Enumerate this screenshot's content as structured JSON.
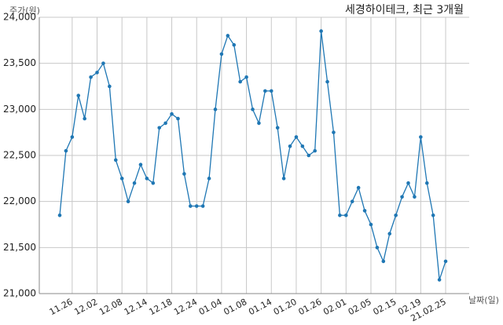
{
  "chart_data": {
    "type": "line",
    "title": "세경하이테크, 최근 3개월",
    "y_label": "주가(원)",
    "x_label": "날짜(일)",
    "categories": [
      null,
      null,
      "11.26",
      null,
      null,
      null,
      "12.02",
      null,
      null,
      null,
      "12.08",
      null,
      null,
      null,
      "12.14",
      null,
      null,
      null,
      "12.18",
      null,
      null,
      null,
      "12.24",
      null,
      null,
      null,
      "01.04",
      null,
      null,
      null,
      "01.08",
      null,
      null,
      null,
      "01.14",
      null,
      null,
      null,
      "01.20",
      null,
      null,
      null,
      "01.26",
      null,
      null,
      null,
      "02.01",
      null,
      null,
      null,
      "02.05",
      null,
      null,
      null,
      "02.15",
      null,
      null,
      null,
      "02.19",
      null,
      null,
      null,
      "21.02.25"
    ],
    "values": [
      21850,
      22550,
      22700,
      23150,
      22900,
      23350,
      23400,
      23500,
      23250,
      22450,
      22250,
      22000,
      22200,
      22400,
      22250,
      22200,
      22800,
      22850,
      22950,
      22900,
      22300,
      21950,
      21950,
      21950,
      22250,
      23000,
      23600,
      23800,
      23700,
      23300,
      23350,
      23000,
      22850,
      23200,
      23200,
      22800,
      22250,
      22600,
      22700,
      22600,
      22500,
      22550,
      23850,
      23300,
      22750,
      21850,
      21850,
      22000,
      22150,
      21900,
      21750,
      21500,
      21350,
      21650,
      21850,
      22050,
      22200,
      22050,
      22700,
      22200,
      21850,
      21150,
      21350
    ],
    "color": "#1f77b4",
    "ylim": [
      21000,
      24000
    ],
    "yticks": [
      {
        "value": 21000,
        "label": "21,000"
      },
      {
        "value": 21500,
        "label": "21,500"
      },
      {
        "value": 22000,
        "label": "22,000"
      },
      {
        "value": 22500,
        "label": "22,500"
      },
      {
        "value": 23000,
        "label": "23,000"
      },
      {
        "value": 23500,
        "label": "23,500"
      },
      {
        "value": 24000,
        "label": "24,000"
      }
    ],
    "grid": true
  }
}
